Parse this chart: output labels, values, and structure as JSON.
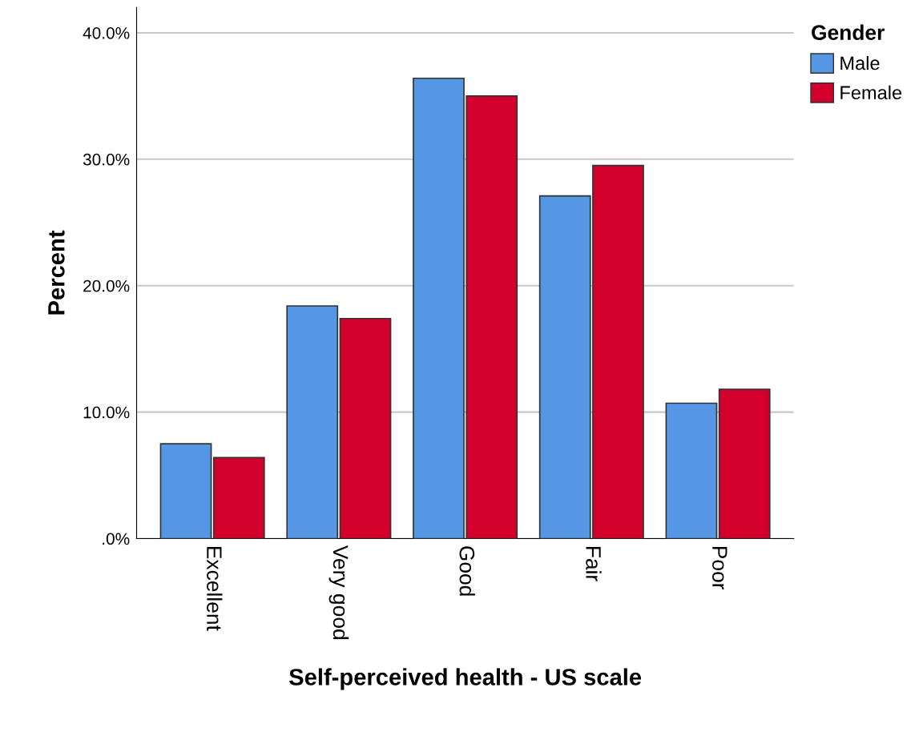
{
  "chart_data": {
    "type": "bar",
    "xlabel": "Self-perceived health - US scale",
    "ylabel": "Percent",
    "legend_title": "Gender",
    "categories": [
      "Excellent",
      "Very good",
      "Good",
      "Fair",
      "Poor"
    ],
    "series": [
      {
        "name": "Male",
        "color": "#5597e4",
        "values": [
          7.5,
          18.4,
          36.4,
          27.1,
          10.7
        ]
      },
      {
        "name": "Female",
        "color": "#d3002b",
        "values": [
          6.4,
          17.4,
          35.0,
          29.5,
          11.8
        ]
      }
    ],
    "ylim": [
      0,
      42
    ],
    "yticks": [
      {
        "value": 0,
        "label": ".0%"
      },
      {
        "value": 10,
        "label": "10.0%"
      },
      {
        "value": 20,
        "label": "20.0%"
      },
      {
        "value": 30,
        "label": "30.0%"
      },
      {
        "value": 40,
        "label": "40.0%"
      }
    ],
    "grid": "y",
    "legend": "right"
  }
}
